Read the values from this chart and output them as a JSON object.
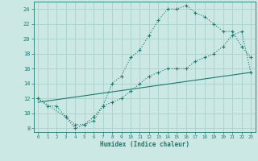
{
  "title": "",
  "xlabel": "Humidex (Indice chaleur)",
  "background_color": "#cce8e4",
  "line_color": "#1a7a6e",
  "xlim": [
    -0.5,
    23.5
  ],
  "ylim": [
    7.5,
    25.0
  ],
  "xticks": [
    0,
    1,
    2,
    3,
    4,
    5,
    6,
    7,
    8,
    9,
    10,
    11,
    12,
    13,
    14,
    15,
    16,
    17,
    18,
    19,
    20,
    21,
    22,
    23
  ],
  "yticks": [
    8,
    10,
    12,
    14,
    16,
    18,
    20,
    22,
    24
  ],
  "grid_color": "#aed4ce",
  "line1_x": [
    0,
    1,
    2,
    3,
    4,
    5,
    6,
    7,
    8,
    9,
    10,
    11,
    12,
    13,
    14,
    15,
    16,
    17,
    18,
    19,
    20,
    21,
    22,
    23
  ],
  "line1_y": [
    12,
    11,
    11,
    9.5,
    8.5,
    8.5,
    9,
    11,
    11.5,
    12,
    13,
    14,
    15,
    15.5,
    16,
    16,
    16,
    17,
    17.5,
    18,
    19,
    20.5,
    21,
    15.5
  ],
  "line2_x": [
    0,
    3,
    4,
    5,
    6,
    7,
    8,
    9,
    10,
    11,
    12,
    13,
    14,
    15,
    16,
    17,
    18,
    19,
    20,
    21,
    22,
    23
  ],
  "line2_y": [
    12,
    9.5,
    8,
    8.5,
    9.5,
    11,
    14,
    15,
    17.5,
    18.5,
    20.5,
    22.5,
    24,
    24,
    24.5,
    23.5,
    23,
    22,
    21,
    21,
    19,
    17.5
  ],
  "line3_x": [
    0,
    23
  ],
  "line3_y": [
    11.5,
    15.5
  ]
}
